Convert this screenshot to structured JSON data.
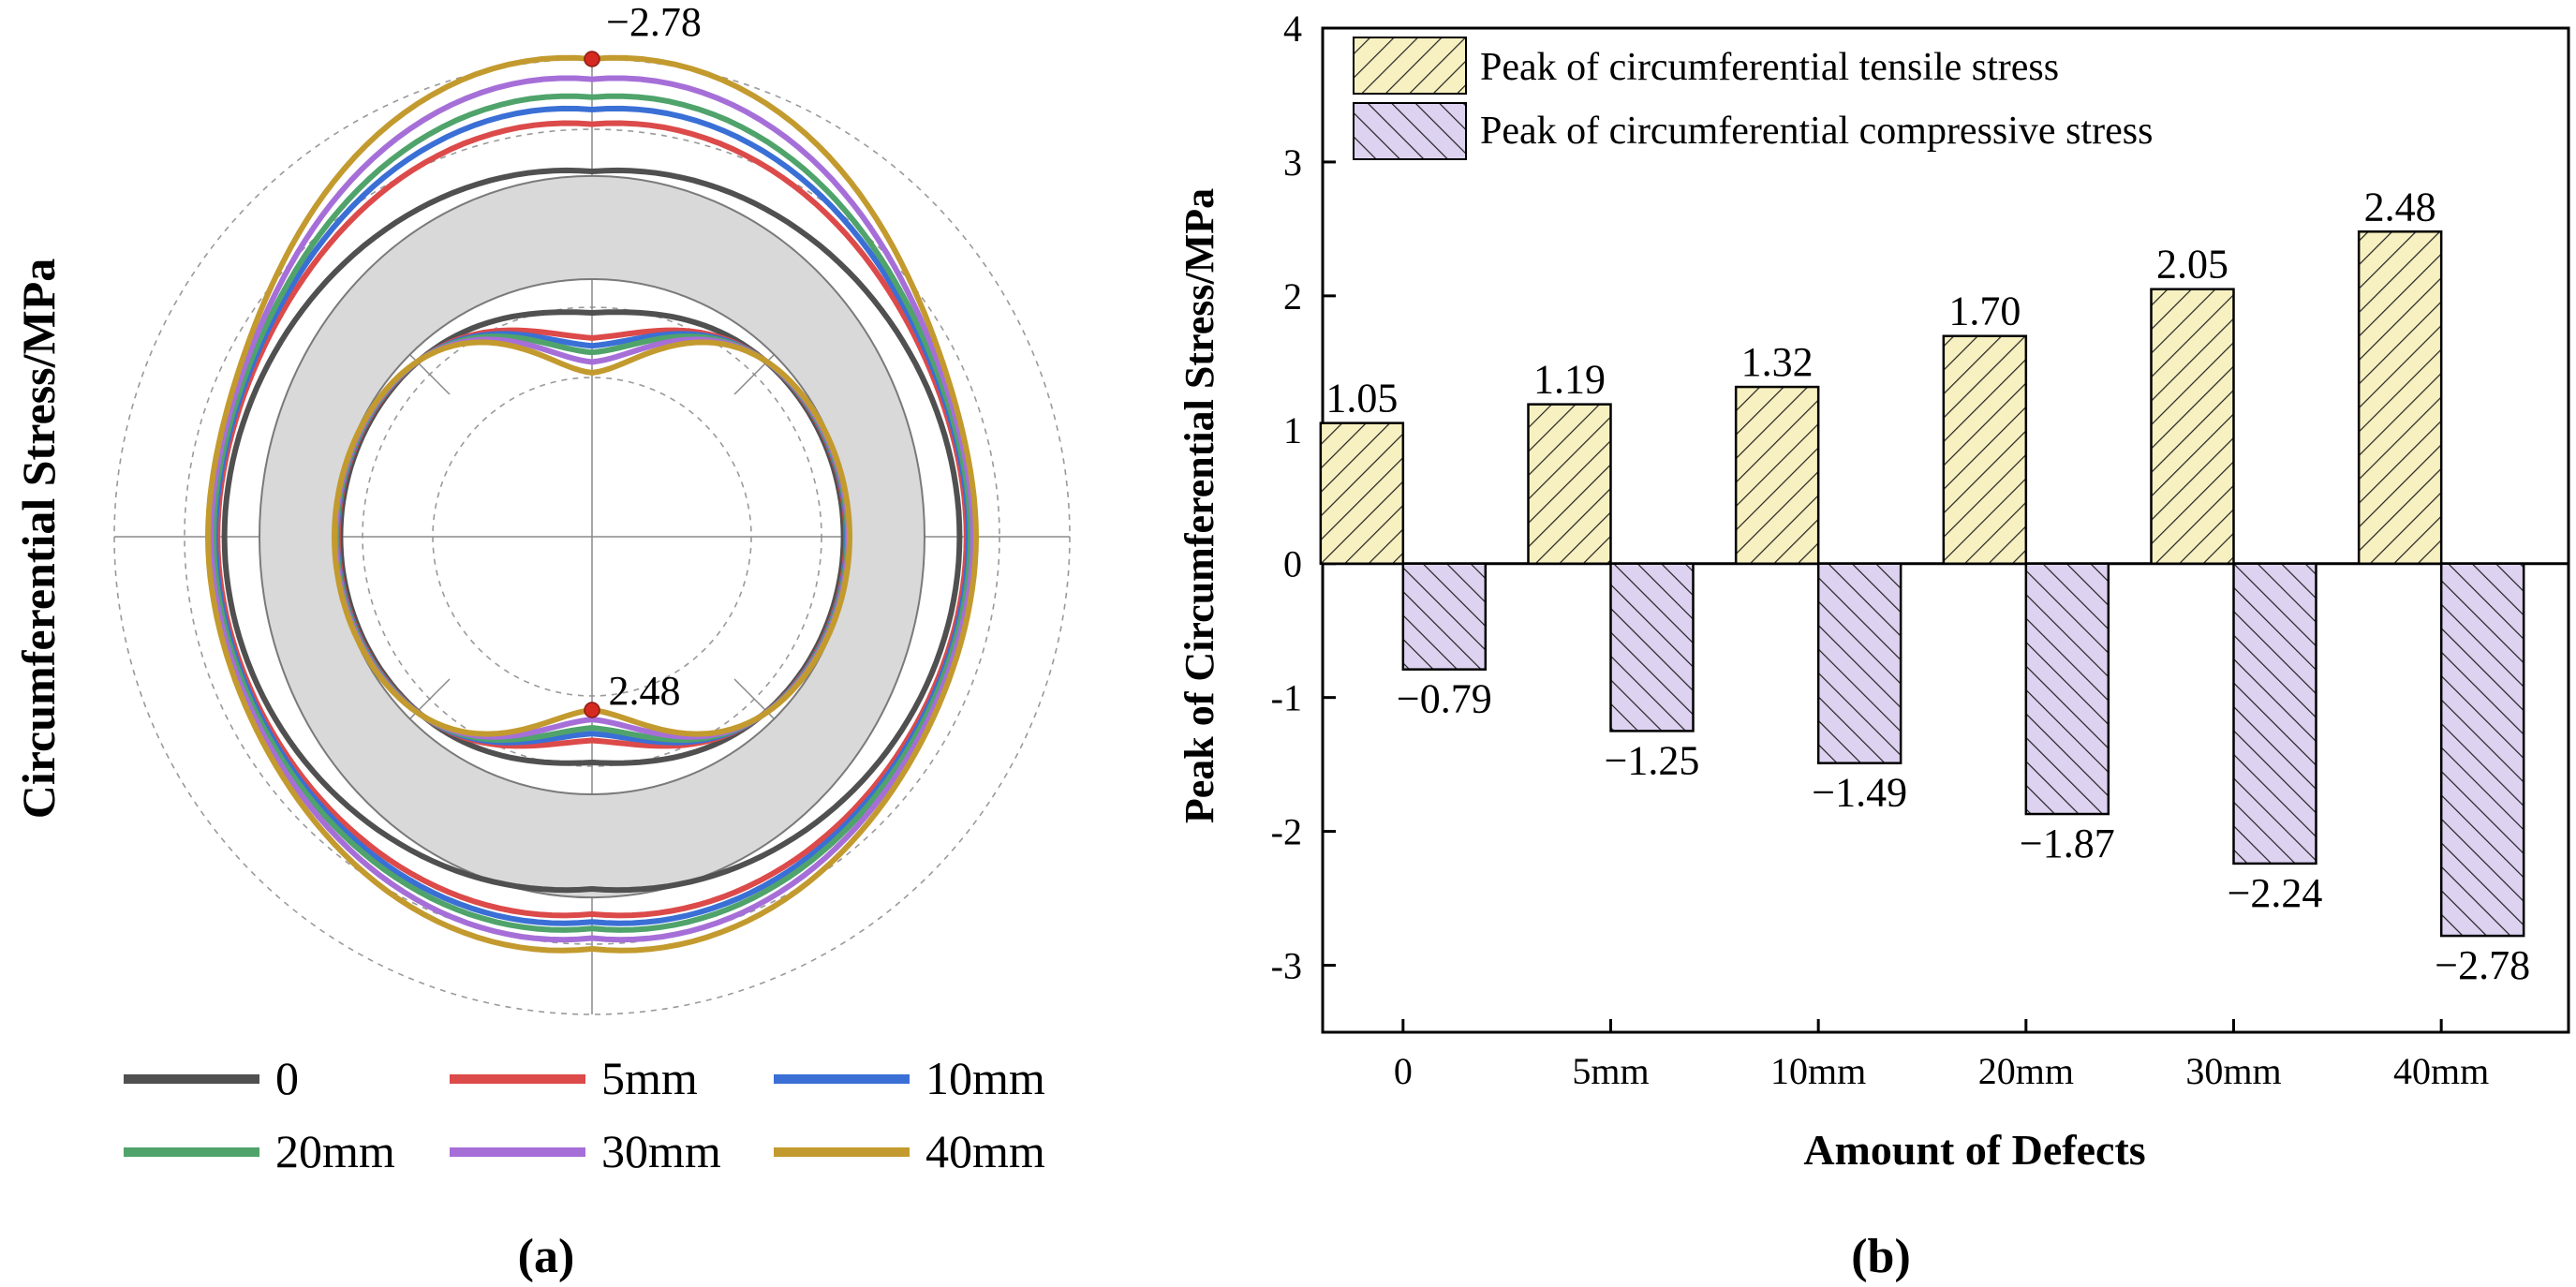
{
  "chart_data": [
    {
      "type": "polar",
      "panel_label": "(a)",
      "ylabel": "Circumferential Stress/MPa",
      "max_annotation": "−2.78",
      "min_annotation": "2.48",
      "legend": [
        {
          "label": "0",
          "color": "#505050",
          "scale": 0.0
        },
        {
          "label": "5mm",
          "color": "#dc4a4a",
          "scale": 0.42
        },
        {
          "label": "10mm",
          "color": "#3a6fd6",
          "scale": 0.55
        },
        {
          "label": "20mm",
          "color": "#4fa36b",
          "scale": 0.66
        },
        {
          "label": "30mm",
          "color": "#a66fd8",
          "scale": 0.82
        },
        {
          "label": "40mm",
          "color": "#c39a2e",
          "scale": 1.0
        }
      ]
    },
    {
      "type": "bar",
      "panel_label": "(b)",
      "xlabel": "Amount of Defects",
      "ylabel": "Peak of Circumferential Stress/MPa",
      "categories": [
        "0",
        "5mm",
        "10mm",
        "20mm",
        "30mm",
        "40mm"
      ],
      "ylim": [
        -3.5,
        4
      ],
      "yticks": [
        "4",
        "3",
        "2",
        "1",
        "0",
        "-1",
        "-2",
        "-3"
      ],
      "series": [
        {
          "name": "Peak of circumferential tensile stress",
          "color": "#f7f0c0",
          "values": [
            1.05,
            1.19,
            1.32,
            1.7,
            2.05,
            2.48
          ],
          "labels": [
            "1.05",
            "1.19",
            "1.32",
            "1.70",
            "2.05",
            "2.48"
          ]
        },
        {
          "name": "Peak of circumferential compressive stress",
          "color": "#ddd2f0",
          "values": [
            -0.79,
            -1.25,
            -1.49,
            -1.87,
            -2.24,
            -2.78
          ],
          "labels": [
            "−0.79",
            "−1.25",
            "−1.49",
            "−1.87",
            "−2.24",
            "−2.78"
          ]
        }
      ]
    }
  ]
}
